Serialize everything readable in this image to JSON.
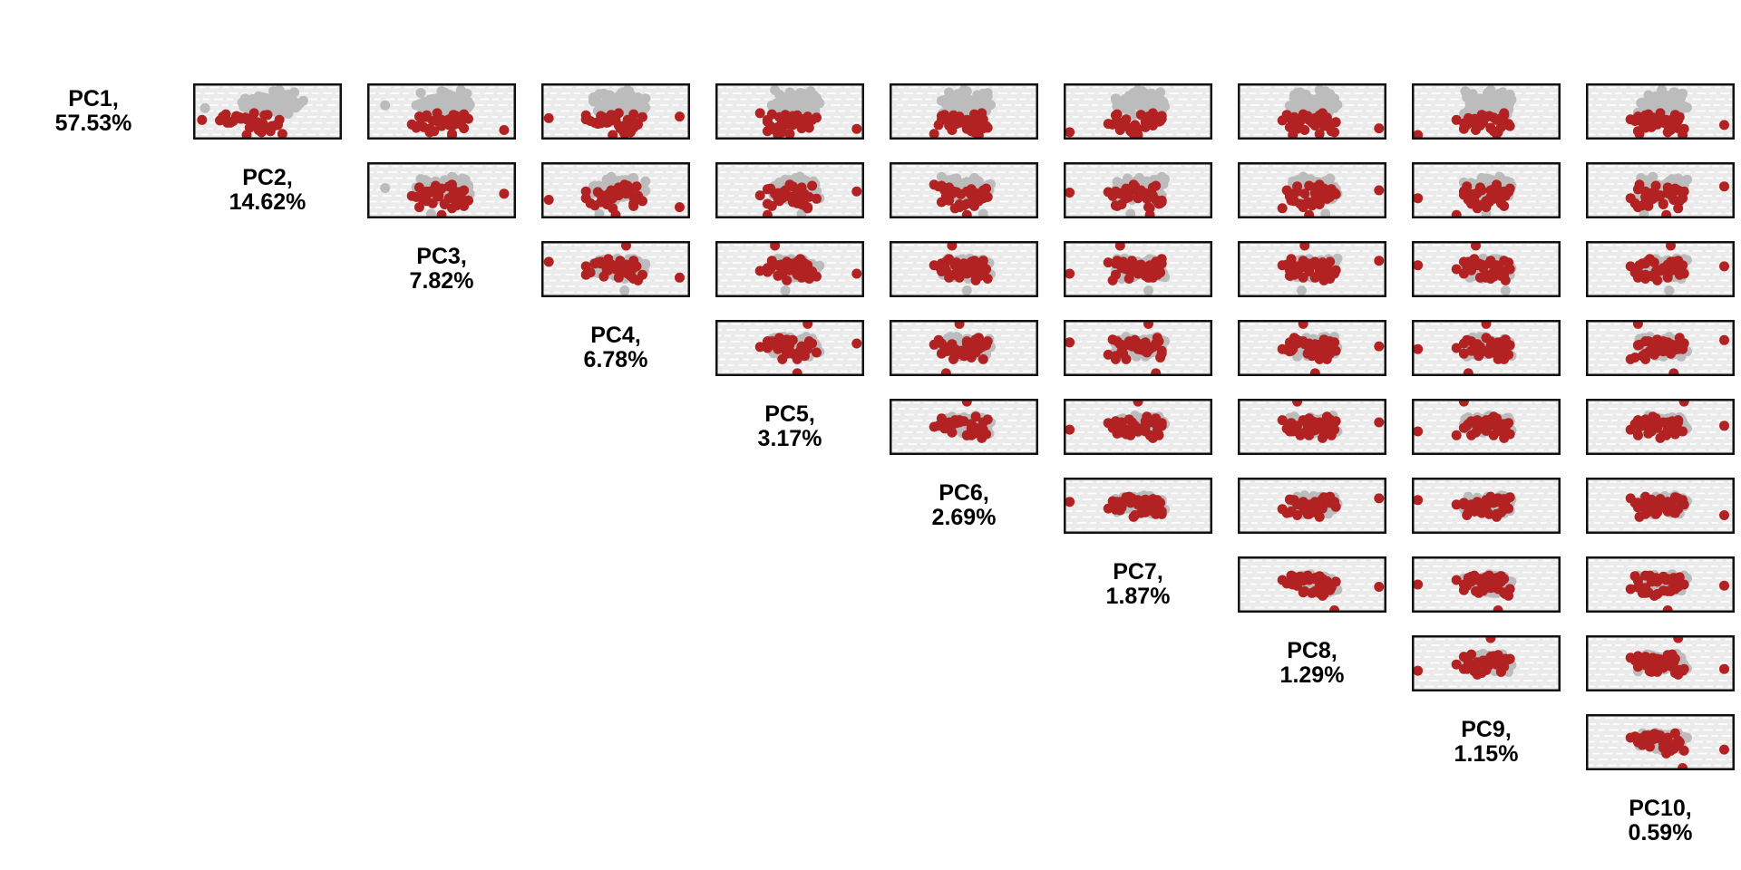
{
  "chart_data": {
    "type": "scatter",
    "subtype": "pairs-matrix-upper-triangular",
    "title": "",
    "axes_ticks_visible": false,
    "grid": {
      "horizontal_dashed_white_lines": true,
      "vertical_lines": false
    },
    "legend_position": "none",
    "components": [
      {
        "name": "PC1",
        "variance_pct": 57.53,
        "label_line1": "PC1,",
        "label_line2": "57.53%"
      },
      {
        "name": "PC2",
        "variance_pct": 14.62,
        "label_line1": "PC2,",
        "label_line2": "14.62%"
      },
      {
        "name": "PC3",
        "variance_pct": 7.82,
        "label_line1": "PC3,",
        "label_line2": "7.82%"
      },
      {
        "name": "PC4",
        "variance_pct": 6.78,
        "label_line1": "PC4,",
        "label_line2": "6.78%"
      },
      {
        "name": "PC5",
        "variance_pct": 3.17,
        "label_line1": "PC5,",
        "label_line2": "3.17%"
      },
      {
        "name": "PC6",
        "variance_pct": 2.69,
        "label_line1": "PC6,",
        "label_line2": "2.69%"
      },
      {
        "name": "PC7",
        "variance_pct": 1.87,
        "label_line1": "PC7,",
        "label_line2": "1.87%"
      },
      {
        "name": "PC8",
        "variance_pct": 1.29,
        "label_line1": "PC8,",
        "label_line2": "1.29%"
      },
      {
        "name": "PC9",
        "variance_pct": 1.15,
        "label_line1": "PC9,",
        "label_line2": "1.15%"
      },
      {
        "name": "PC10",
        "variance_pct": 0.59,
        "label_line1": "PC10,",
        "label_line2": "0.59%"
      }
    ],
    "colors": {
      "group_gray": "#bcbcbc",
      "group_red": "#b22222",
      "panel_background": "#ebebeb",
      "gridline": "#ffffff",
      "panel_border": "#111111",
      "label_text": "#000000",
      "page_background": "#ffffff"
    },
    "groups": [
      {
        "name": "group-gray",
        "color": "#bcbcbc"
      },
      {
        "name": "group-red",
        "color": "#b22222"
      }
    ],
    "samples_note": "Each sample has 10 normalized PC scores (0=low/bottom-left, 1=high/top-right). Panel (row i, col j) plots PCj on x vs PCi on y.",
    "gray_samples": [
      [
        0.62,
        0.48,
        0.55,
        0.41,
        0.52,
        0.6,
        0.47,
        0.58,
        0.5,
        0.44
      ],
      [
        0.71,
        0.63,
        0.42,
        0.57,
        0.49,
        0.38,
        0.62,
        0.45,
        0.57,
        0.61
      ],
      [
        0.55,
        0.39,
        0.61,
        0.66,
        0.58,
        0.52,
        0.41,
        0.63,
        0.46,
        0.55
      ],
      [
        0.68,
        0.57,
        0.49,
        0.35,
        0.63,
        0.47,
        0.55,
        0.4,
        0.6,
        0.52
      ],
      [
        0.77,
        0.44,
        0.58,
        0.52,
        0.44,
        0.66,
        0.52,
        0.56,
        0.38,
        0.47
      ],
      [
        0.59,
        0.7,
        0.36,
        0.62,
        0.55,
        0.43,
        0.68,
        0.49,
        0.52,
        0.58
      ],
      [
        0.64,
        0.52,
        0.64,
        0.48,
        0.41,
        0.57,
        0.45,
        0.66,
        0.61,
        0.41
      ],
      [
        0.49,
        0.61,
        0.53,
        0.58,
        0.67,
        0.5,
        0.59,
        0.37,
        0.44,
        0.63
      ],
      [
        0.73,
        0.35,
        0.47,
        0.44,
        0.53,
        0.62,
        0.35,
        0.54,
        0.57,
        0.49
      ],
      [
        0.57,
        0.66,
        0.59,
        0.7,
        0.46,
        0.41,
        0.63,
        0.59,
        0.49,
        0.56
      ],
      [
        0.66,
        0.49,
        0.4,
        0.53,
        0.6,
        0.55,
        0.5,
        0.47,
        0.66,
        0.38
      ],
      [
        0.81,
        0.58,
        0.66,
        0.39,
        0.51,
        0.46,
        0.57,
        0.62,
        0.41,
        0.6
      ],
      [
        0.53,
        0.42,
        0.51,
        0.61,
        0.39,
        0.59,
        0.43,
        0.51,
        0.54,
        0.5
      ],
      [
        0.69,
        0.74,
        0.57,
        0.47,
        0.57,
        0.35,
        0.66,
        0.44,
        0.59,
        0.45
      ],
      [
        0.61,
        0.55,
        0.33,
        0.56,
        0.64,
        0.53,
        0.39,
        0.57,
        0.47,
        0.64
      ],
      [
        0.75,
        0.47,
        0.62,
        0.65,
        0.48,
        0.61,
        0.54,
        0.39,
        0.63,
        0.53
      ],
      [
        0.46,
        0.64,
        0.45,
        0.51,
        0.55,
        0.44,
        0.61,
        0.55,
        0.35,
        0.57
      ],
      [
        0.65,
        0.36,
        0.56,
        0.43,
        0.7,
        0.58,
        0.48,
        0.64,
        0.52,
        0.42
      ],
      [
        0.58,
        0.59,
        0.68,
        0.59,
        0.43,
        0.49,
        0.58,
        0.48,
        0.57,
        0.66
      ],
      [
        0.72,
        0.51,
        0.44,
        0.37,
        0.58,
        0.64,
        0.42,
        0.6,
        0.44,
        0.51
      ],
      [
        0.84,
        0.68,
        0.52,
        0.55,
        0.5,
        0.4,
        0.65,
        0.42,
        0.61,
        0.59
      ],
      [
        0.54,
        0.45,
        0.6,
        0.64,
        0.62,
        0.56,
        0.37,
        0.57,
        0.5,
        0.46
      ],
      [
        0.67,
        0.58,
        0.38,
        0.49,
        0.45,
        0.51,
        0.6,
        0.52,
        0.42,
        0.62
      ],
      [
        0.6,
        0.4,
        0.54,
        0.58,
        0.66,
        0.62,
        0.51,
        0.35,
        0.65,
        0.48
      ],
      [
        0.78,
        0.62,
        0.65,
        0.45,
        0.54,
        0.47,
        0.44,
        0.61,
        0.55,
        0.54
      ],
      [
        0.5,
        0.53,
        0.48,
        0.68,
        0.4,
        0.59,
        0.63,
        0.46,
        0.48,
        0.39
      ],
      [
        0.7,
        0.67,
        0.57,
        0.52,
        0.61,
        0.37,
        0.49,
        0.59,
        0.62,
        0.57
      ],
      [
        0.63,
        0.43,
        0.35,
        0.6,
        0.52,
        0.55,
        0.57,
        0.5,
        0.39,
        0.5
      ],
      [
        0.56,
        0.56,
        0.63,
        0.4,
        0.47,
        0.65,
        0.4,
        0.65,
        0.58,
        0.61
      ],
      [
        0.74,
        0.49,
        0.5,
        0.54,
        0.68,
        0.42,
        0.64,
        0.38,
        0.51,
        0.43
      ],
      [
        0.45,
        0.6,
        0.58,
        0.63,
        0.56,
        0.57,
        0.52,
        0.55,
        0.64,
        0.58
      ],
      [
        0.66,
        0.33,
        0.46,
        0.5,
        0.42,
        0.48,
        0.46,
        0.6,
        0.46,
        0.52
      ],
      [
        0.82,
        0.55,
        0.67,
        0.42,
        0.59,
        0.63,
        0.59,
        0.43,
        0.59,
        0.65
      ],
      [
        0.59,
        0.65,
        0.41,
        0.57,
        0.49,
        0.52,
        0.36,
        0.53,
        0.53,
        0.4
      ],
      [
        0.52,
        0.46,
        0.59,
        0.67,
        0.65,
        0.39,
        0.62,
        0.58,
        0.43,
        0.55
      ],
      [
        0.71,
        0.58,
        0.52,
        0.36,
        0.44,
        0.61,
        0.55,
        0.47,
        0.67,
        0.47
      ],
      [
        0.64,
        0.71,
        0.64,
        0.61,
        0.57,
        0.45,
        0.43,
        0.62,
        0.5,
        0.62
      ],
      [
        0.48,
        0.41,
        0.37,
        0.53,
        0.51,
        0.56,
        0.66,
        0.36,
        0.56,
        0.35
      ],
      [
        0.76,
        0.63,
        0.55,
        0.47,
        0.62,
        0.5,
        0.48,
        0.56,
        0.4,
        0.59
      ],
      [
        0.61,
        0.5,
        0.61,
        0.66,
        0.38,
        0.67,
        0.58,
        0.51,
        0.62,
        0.53
      ],
      [
        0.69,
        0.38,
        0.44,
        0.55,
        0.55,
        0.43,
        0.39,
        0.64,
        0.45,
        0.44
      ],
      [
        0.57,
        0.69,
        0.66,
        0.44,
        0.47,
        0.58,
        0.61,
        0.41,
        0.58,
        0.68
      ],
      [
        0.86,
        0.54,
        0.5,
        0.59,
        0.64,
        0.52,
        0.53,
        0.59,
        0.36,
        0.51
      ],
      [
        0.51,
        0.47,
        0.57,
        0.38,
        0.53,
        0.65,
        0.45,
        0.54,
        0.6,
        0.58
      ],
      [
        0.67,
        0.61,
        0.43,
        0.63,
        0.59,
        0.4,
        0.67,
        0.48,
        0.53,
        0.46
      ],
      [
        0.62,
        0.44,
        0.69,
        0.51,
        0.42,
        0.54,
        0.41,
        0.67,
        0.48,
        0.61
      ],
      [
        0.79,
        0.66,
        0.54,
        0.46,
        0.66,
        0.59,
        0.56,
        0.38,
        0.64,
        0.42
      ],
      [
        0.55,
        0.52,
        0.47,
        0.69,
        0.5,
        0.46,
        0.62,
        0.57,
        0.41,
        0.56
      ],
      [
        0.72,
        0.4,
        0.62,
        0.56,
        0.45,
        0.62,
        0.35,
        0.49,
        0.55,
        0.49
      ],
      [
        0.47,
        0.57,
        0.4,
        0.48,
        0.61,
        0.36,
        0.59,
        0.61,
        0.59,
        0.63
      ],
      [
        0.65,
        0.72,
        0.58,
        0.62,
        0.54,
        0.57,
        0.51,
        0.45,
        0.47,
        0.37
      ],
      [
        0.6,
        0.48,
        0.51,
        0.41,
        0.39,
        0.49,
        0.64,
        0.58,
        0.62,
        0.54
      ],
      [
        0.83,
        0.59,
        0.36,
        0.54,
        0.57,
        0.66,
        0.47,
        0.4,
        0.51,
        0.6
      ],
      [
        0.58,
        0.34,
        0.64,
        0.65,
        0.48,
        0.53,
        0.6,
        0.63,
        0.44,
        0.45
      ],
      [
        0.68,
        0.62,
        0.56,
        0.5,
        0.63,
        0.44,
        0.38,
        0.53,
        0.57,
        0.57
      ],
      [
        0.53,
        0.51,
        0.45,
        0.59,
        0.41,
        0.6,
        0.56,
        0.47,
        0.65,
        0.5
      ],
      [
        0.75,
        0.45,
        0.6,
        0.35,
        0.56,
        0.51,
        0.49,
        0.6,
        0.37,
        0.64
      ],
      [
        0.63,
        0.68,
        0.39,
        0.57,
        0.6,
        0.38,
        0.63,
        0.44,
        0.54,
        0.41
      ],
      [
        0.49,
        0.56,
        0.66,
        0.49,
        0.52,
        0.62,
        0.44,
        0.56,
        0.61,
        0.55
      ],
      [
        0.7,
        0.42,
        0.53,
        0.64,
        0.46,
        0.55,
        0.58,
        0.39,
        0.49,
        0.59
      ],
      [
        0.66,
        0.6,
        0.48,
        0.53,
        0.65,
        0.47,
        0.4,
        0.62,
        0.58,
        0.48
      ],
      [
        0.54,
        0.37,
        0.61,
        0.45,
        0.5,
        0.58,
        0.62,
        0.52,
        0.42,
        0.53
      ],
      [
        0.8,
        0.64,
        0.55,
        0.6,
        0.43,
        0.41,
        0.53,
        0.46,
        0.66,
        0.62
      ],
      [
        0.56,
        0.08,
        0.43,
        0.39,
        0.58,
        0.63,
        0.45,
        0.59,
        0.5,
        0.39
      ],
      [
        0.61,
        0.54,
        0.12,
        0.56,
        0.47,
        0.52,
        0.57,
        0.43,
        0.63,
        0.56
      ],
      [
        0.73,
        0.49,
        0.58,
        0.7,
        0.61,
        0.45,
        0.42,
        0.65,
        0.46,
        0.43
      ],
      [
        0.59,
        0.66,
        0.46,
        0.47,
        0.54,
        0.6,
        0.66,
        0.37,
        0.59,
        0.66
      ],
      [
        0.88,
        0.58,
        0.63,
        0.58,
        0.4,
        0.5,
        0.5,
        0.55,
        0.53,
        0.51
      ],
      [
        0.52,
        0.43,
        0.5,
        0.43,
        0.67,
        0.57,
        0.61,
        0.49,
        0.38,
        0.58
      ],
      [
        0.67,
        0.55,
        0.68,
        0.62,
        0.51,
        0.39,
        0.36,
        0.61,
        0.55,
        0.47
      ],
      [
        0.62,
        0.61,
        0.41,
        0.52,
        0.58,
        0.68,
        0.54,
        0.45,
        0.6,
        0.6
      ],
      [
        0.44,
        0.5,
        0.57,
        0.66,
        0.44,
        0.53,
        0.47,
        0.57,
        0.44,
        0.36
      ]
    ],
    "red_samples": [
      [
        0.3,
        0.25,
        0.52,
        0.44,
        0.58,
        0.47,
        0.39,
        0.55,
        0.48,
        0.52
      ],
      [
        0.22,
        0.45,
        0.38,
        0.6,
        0.42,
        0.61,
        0.55,
        0.35,
        0.6,
        0.44
      ],
      [
        0.38,
        0.33,
        0.63,
        0.05,
        0.55,
        0.38,
        0.62,
        0.52,
        0.38,
        0.59
      ],
      [
        0.15,
        0.52,
        0.45,
        0.55,
        0.35,
        0.55,
        0.45,
        0.63,
        0.55,
        0.35
      ],
      [
        0.34,
        0.18,
        0.57,
        0.48,
        0.62,
        0.44,
        0.58,
        0.3,
        0.44,
        0.62
      ],
      [
        0.27,
        0.4,
        0.3,
        0.65,
        0.48,
        0.58,
        0.33,
        0.58,
        0.63,
        0.48
      ],
      [
        0.42,
        0.29,
        0.6,
        0.4,
        0.52,
        0.35,
        0.66,
        0.47,
        0.52,
        0.4
      ],
      [
        0.19,
        0.48,
        0.42,
        0.58,
        0.95,
        0.52,
        0.5,
        0.4,
        0.35,
        0.66
      ],
      [
        0.36,
        0.36,
        0.55,
        0.3,
        0.45,
        0.63,
        0.42,
        0.6,
        0.58,
        0.3
      ],
      [
        0.25,
        0.55,
        0.35,
        0.52,
        0.58,
        0.4,
        0.6,
        0.52,
        0.46,
        0.55
      ],
      [
        0.45,
        0.22,
        0.65,
        0.62,
        0.38,
        0.57,
        0.36,
        0.44,
        0.62,
        0.42
      ],
      [
        0.31,
        0.43,
        0.48,
        0.45,
        0.6,
        0.48,
        0.55,
        0.66,
        0.4,
        0.58
      ],
      [
        0.1,
        0.6,
        0.57,
        0.56,
        0.5,
        0.3,
        0.47,
        0.55,
        0.57,
        0.36
      ],
      [
        0.4,
        0.31,
        0.4,
        0.68,
        0.43,
        0.6,
        0.63,
        0.38,
        0.5,
        0.63
      ],
      [
        0.28,
        0.47,
        0.62,
        0.38,
        0.57,
        0.45,
        0.3,
        0.57,
        0.65,
        0.46
      ],
      [
        0.35,
        0.06,
        0.5,
        0.5,
        0.35,
        0.52,
        0.58,
        0.48,
        0.3,
        0.54
      ],
      [
        0.21,
        0.38,
        0.33,
        0.62,
        0.63,
        0.66,
        0.44,
        0.62,
        0.53,
        0.4
      ],
      [
        0.44,
        0.5,
        0.58,
        0.47,
        0.47,
        0.37,
        0.52,
        0.33,
        0.47,
        0.6
      ],
      [
        0.33,
        0.27,
        0.44,
        0.33,
        0.55,
        0.55,
        0.65,
        0.55,
        0.6,
        0.33
      ],
      [
        0.17,
        0.44,
        0.92,
        0.57,
        0.4,
        0.42,
        0.38,
        0.45,
        0.43,
        0.57
      ],
      [
        0.39,
        0.35,
        0.37,
        0.42,
        0.68,
        0.58,
        0.56,
        0.6,
        0.55,
        0.45
      ],
      [
        0.26,
        0.57,
        0.55,
        0.64,
        0.52,
        0.33,
        0.48,
        0.4,
        0.37,
        0.93
      ],
      [
        0.47,
        0.41,
        0.47,
        0.52,
        0.3,
        0.62,
        0.6,
        0.57,
        0.62,
        0.5
      ],
      [
        0.3,
        0.23,
        0.6,
        0.36,
        0.6,
        0.5,
        0.35,
        0.5,
        0.45,
        0.38
      ],
      [
        0.13,
        0.46,
        0.42,
        0.6,
        0.45,
        0.57,
        0.04,
        0.65,
        0.58,
        0.55
      ],
      [
        0.37,
        0.32,
        0.68,
        0.45,
        0.57,
        0.4,
        0.66,
        0.36,
        0.42,
        0.43
      ],
      [
        0.24,
        0.53,
        0.5,
        0.55,
        0.37,
        0.65,
        0.42,
        0.58,
        0.66,
        0.6
      ],
      [
        0.41,
        0.2,
        0.35,
        0.93,
        0.62,
        0.47,
        0.57,
        0.44,
        0.5,
        0.35
      ],
      [
        0.29,
        0.42,
        0.63,
        0.4,
        0.48,
        0.55,
        0.4,
        0.62,
        0.35,
        0.57
      ],
      [
        0.35,
        0.58,
        0.46,
        0.58,
        0.65,
        0.35,
        0.62,
        0.48,
        0.57,
        0.47
      ],
      [
        0.08,
        0.36,
        0.57,
        0.48,
        0.42,
        0.6,
        0.5,
        0.37,
        0.04,
        0.65
      ],
      [
        0.43,
        0.48,
        0.4,
        0.3,
        0.55,
        0.43,
        0.35,
        0.55,
        0.62,
        0.4
      ],
      [
        0.32,
        0.26,
        0.52,
        0.62,
        0.35,
        0.52,
        0.64,
        0.42,
        0.4,
        0.52
      ],
      [
        0.2,
        0.5,
        0.65,
        0.53,
        0.58,
        0.63,
        0.46,
        0.95,
        0.53,
        0.62
      ],
      [
        0.38,
        0.39,
        0.48,
        0.44,
        0.5,
        0.38,
        0.55,
        0.35,
        0.6,
        0.48
      ],
      [
        0.26,
        0.45,
        0.58,
        0.57,
        0.44,
        0.57,
        0.38,
        0.52,
        0.44,
        0.55
      ]
    ]
  }
}
